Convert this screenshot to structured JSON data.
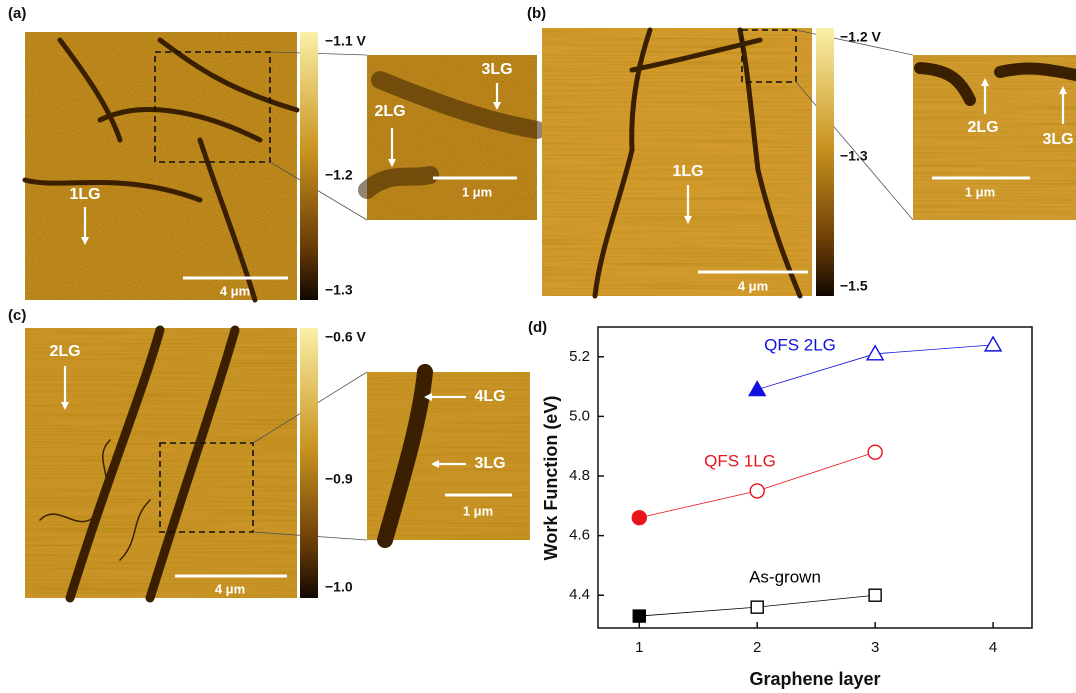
{
  "panels": [
    {
      "label": "(a)",
      "colorbar": [
        "−1.1 V",
        "−1.2",
        "−1.3"
      ],
      "annotations": [
        "1LG",
        "2LG",
        "3LG"
      ],
      "scale_bars": [
        "4 μm",
        "1 μm"
      ]
    },
    {
      "label": "(b)",
      "colorbar": [
        "−1.2 V",
        "−1.3",
        "−1.5"
      ],
      "annotations": [
        "1LG",
        "2LG",
        "3LG"
      ],
      "scale_bars": [
        "4 μm",
        "1 μm"
      ]
    },
    {
      "label": "(c)",
      "colorbar": [
        "−0.6 V",
        "−0.9",
        "−1.0"
      ],
      "annotations": [
        "2LG",
        "4LG",
        "3LG"
      ],
      "scale_bars": [
        "4 μm",
        "1 μm"
      ]
    }
  ],
  "chart_data": {
    "type": "line",
    "label": "(d)",
    "x_label": "Graphene layer",
    "y_label": "Work Function (eV)",
    "xlim": [
      0.65,
      4.33
    ],
    "xticks": [
      1,
      2,
      3,
      4
    ],
    "ylim": [
      4.29,
      5.3
    ],
    "yticks": [
      4.4,
      4.6,
      4.8,
      {
        "value": 5,
        "label": "5.0"
      },
      5.2
    ],
    "series": [
      {
        "name": "As-grown",
        "color": "#000000",
        "marker": "square",
        "x": [
          1,
          2,
          3
        ],
        "values": [
          4.33,
          4.36,
          4.4
        ],
        "filled": [
          true,
          false,
          false
        ]
      },
      {
        "name": "QFS 1LG",
        "color": "#e8141c",
        "marker": "circle",
        "x": [
          1,
          2,
          3
        ],
        "values": [
          4.66,
          4.75,
          4.88
        ],
        "filled": [
          true,
          false,
          false
        ]
      },
      {
        "name": "QFS 2LG",
        "color": "#1010e0",
        "marker": "triangle",
        "x": [
          2,
          3,
          4
        ],
        "values": [
          5.09,
          5.21,
          5.24
        ],
        "filled": [
          true,
          false,
          false
        ]
      }
    ]
  }
}
